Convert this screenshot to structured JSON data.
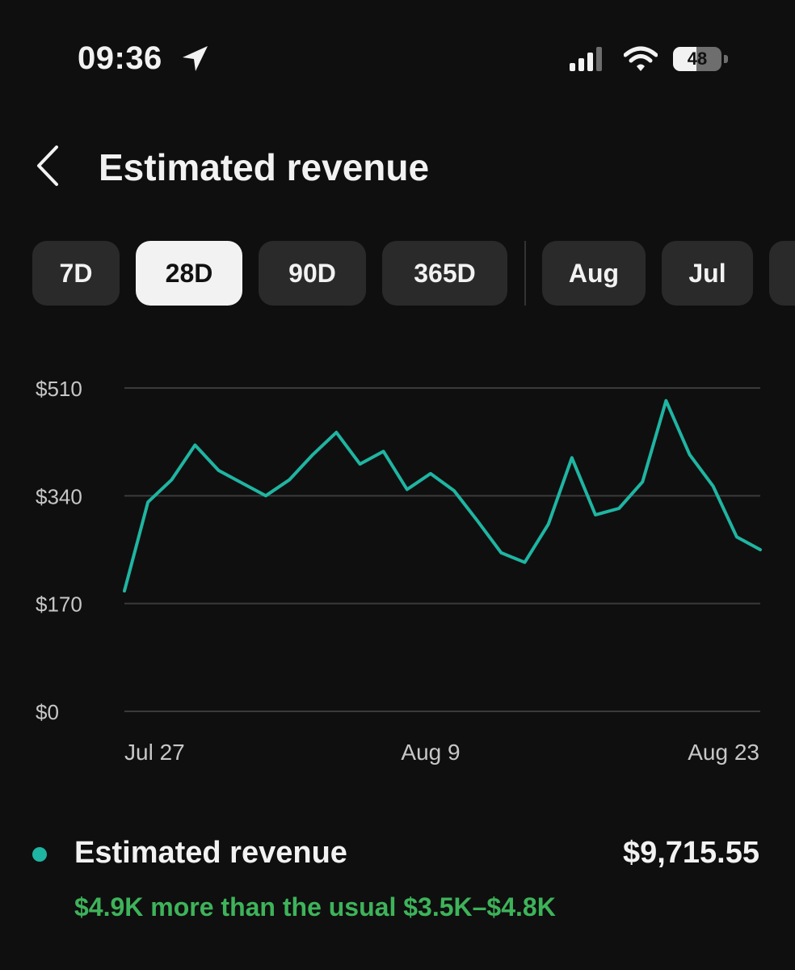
{
  "status": {
    "time": "09:36",
    "battery": "48",
    "battery_level": 0.48
  },
  "header": {
    "title": "Estimated revenue"
  },
  "periods": [
    {
      "label": "7D",
      "active": false
    },
    {
      "label": "28D",
      "active": true
    },
    {
      "label": "90D",
      "active": false
    },
    {
      "label": "365D",
      "active": false
    },
    {
      "label": "Aug",
      "active": false
    },
    {
      "label": "Jul",
      "active": false
    }
  ],
  "colors": {
    "series": "#1fb5a2",
    "positive": "#3eb35a",
    "grid": "#3a3a3a",
    "axis_text": "#c7c7c7"
  },
  "chart_data": {
    "type": "line",
    "y_ticks": [
      "$510",
      "$340",
      "$170",
      "$0"
    ],
    "x_ticks": [
      "Jul 27",
      "Aug 9",
      "Aug 23"
    ],
    "ylim": [
      0,
      510
    ],
    "series": [
      {
        "values": [
          190,
          330,
          365,
          420,
          380,
          360,
          340,
          365,
          405,
          440,
          390,
          410,
          350,
          375,
          348,
          300,
          250,
          235,
          295,
          400,
          310,
          320,
          362,
          490,
          405,
          355,
          275,
          255
        ]
      }
    ]
  },
  "legend": {
    "label": "Estimated revenue",
    "total": "$9,715.55",
    "comparison": "$4.9K more than the usual $3.5K–$4.8K"
  }
}
